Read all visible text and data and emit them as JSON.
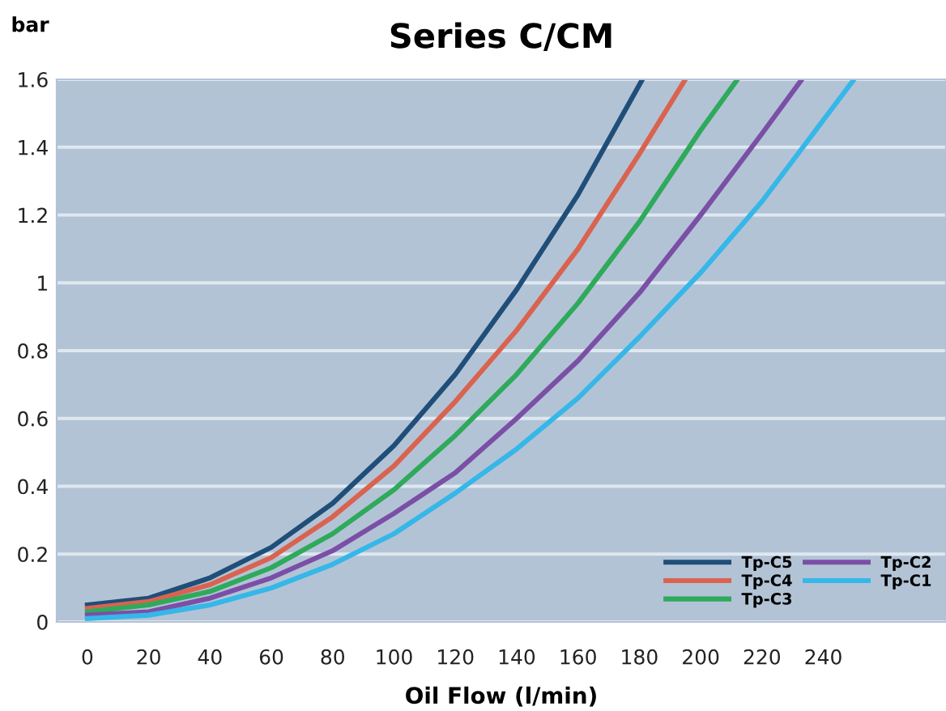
{
  "chart_data": {
    "type": "line",
    "title": "Series C/CM",
    "xlabel": "Oil Flow (l/min)",
    "ylabel": "bar",
    "xlim": [
      -10,
      280
    ],
    "xticks": [
      0,
      20,
      40,
      60,
      80,
      100,
      120,
      140,
      160,
      180,
      200,
      220,
      240
    ],
    "ylim": [
      0,
      1.6
    ],
    "yticks": [
      0,
      0.2,
      0.4,
      0.6,
      0.8,
      1,
      1.2,
      1.4,
      1.6
    ],
    "grid": "y",
    "legend": "bottom right",
    "marker": "none",
    "line_style": "solid",
    "series": [
      {
        "name": "Tp-C5",
        "color": "#1f4e79",
        "x": [
          0,
          20,
          40,
          60,
          80,
          100,
          120,
          140,
          160,
          181
        ],
        "values": [
          0.05,
          0.07,
          0.13,
          0.22,
          0.35,
          0.52,
          0.73,
          0.98,
          1.26,
          1.6
        ]
      },
      {
        "name": "Tp-C4",
        "color": "#d9634f",
        "x": [
          0,
          20,
          40,
          60,
          80,
          100,
          120,
          140,
          160,
          180,
          195
        ],
        "values": [
          0.04,
          0.06,
          0.11,
          0.19,
          0.31,
          0.46,
          0.65,
          0.86,
          1.1,
          1.38,
          1.6
        ]
      },
      {
        "name": "Tp-C3",
        "color": "#2eaa5a",
        "x": [
          0,
          20,
          40,
          60,
          80,
          100,
          120,
          140,
          160,
          180,
          200,
          212
        ],
        "values": [
          0.03,
          0.05,
          0.09,
          0.16,
          0.26,
          0.39,
          0.55,
          0.73,
          0.94,
          1.18,
          1.45,
          1.6
        ]
      },
      {
        "name": "Tp-C2",
        "color": "#7b4fa6",
        "x": [
          0,
          20,
          40,
          60,
          80,
          100,
          120,
          140,
          160,
          180,
          200,
          220,
          233
        ],
        "values": [
          0.02,
          0.03,
          0.07,
          0.13,
          0.21,
          0.32,
          0.44,
          0.6,
          0.77,
          0.97,
          1.2,
          1.44,
          1.6
        ]
      },
      {
        "name": "Tp-C1",
        "color": "#35b7e8",
        "x": [
          0,
          20,
          40,
          60,
          80,
          100,
          120,
          140,
          160,
          180,
          200,
          220,
          240,
          250
        ],
        "values": [
          0.01,
          0.02,
          0.05,
          0.1,
          0.17,
          0.26,
          0.38,
          0.51,
          0.66,
          0.84,
          1.03,
          1.24,
          1.48,
          1.6
        ]
      }
    ]
  }
}
